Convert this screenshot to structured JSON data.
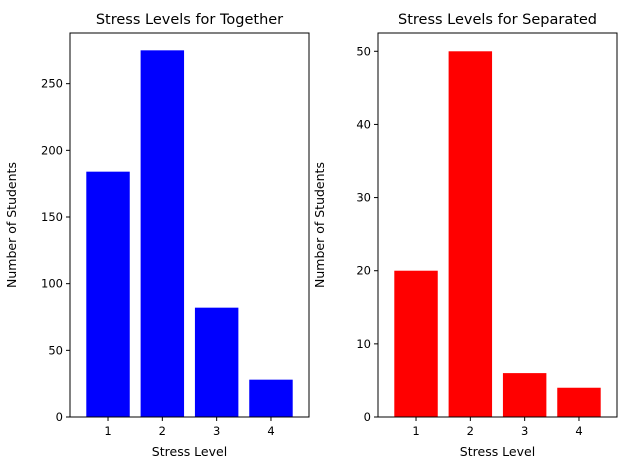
{
  "chart_data": [
    {
      "type": "bar",
      "title": "Stress Levels for  Together",
      "xlabel": "Stress Level",
      "ylabel": "Number of Students",
      "categories": [
        "1",
        "2",
        "3",
        "4"
      ],
      "values": [
        184,
        275,
        82,
        28
      ],
      "ylim": [
        0,
        288
      ],
      "yticks": [
        0,
        50,
        100,
        150,
        200,
        250
      ],
      "color": "#0000ff",
      "grid": false
    },
    {
      "type": "bar",
      "title": "Stress Levels for Separated",
      "xlabel": "Stress Level",
      "ylabel": "Number of Students",
      "categories": [
        "1",
        "2",
        "3",
        "4"
      ],
      "values": [
        20,
        50,
        6,
        4
      ],
      "ylim": [
        0,
        52.5
      ],
      "yticks": [
        0,
        10,
        20,
        30,
        40,
        50
      ],
      "color": "#ff0000",
      "grid": false
    }
  ]
}
